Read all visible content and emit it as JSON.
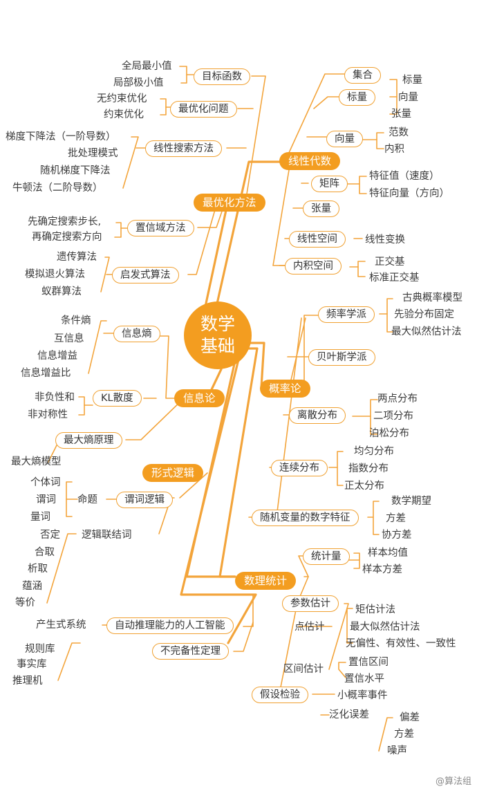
{
  "center": {
    "line1": "数学",
    "line2": "基础"
  },
  "branches": {
    "linear_algebra": {
      "title": "线性代数",
      "set": "集合",
      "scalar": "标量",
      "scalar_items": [
        "标量",
        "向量",
        "张量"
      ],
      "vector": "向量",
      "vector_items": [
        "范数",
        "内积"
      ],
      "matrix": "矩阵",
      "matrix_items": [
        "特征值（速度）",
        "特征向量（方向）"
      ],
      "tensor": "张量",
      "linear_space": "线性空间",
      "linear_space_item": "线性变换",
      "inner_space": "内积空间",
      "inner_space_items": [
        "正交基",
        "标准正交基"
      ]
    },
    "optimization": {
      "title": "最优化方法",
      "objective": "目标函数",
      "objective_items": [
        "全局最小值",
        "局部极小值"
      ],
      "problem": "最优化问题",
      "problem_items": [
        "无约束优化",
        "约束优化"
      ],
      "line_search": "线性搜索方法",
      "line_search_items": [
        "梯度下降法（一阶导数）",
        "批处理模式",
        "随机梯度下降法",
        "牛顿法（二阶导数）"
      ],
      "trust_region": "置信域方法",
      "trust_region_items": [
        "先确定搜索步长,",
        "再确定搜索方向"
      ],
      "heuristic": "启发式算法",
      "heuristic_items": [
        "遗传算法",
        "模拟退火算法",
        "蚁群算法"
      ]
    },
    "information": {
      "title": "信息论",
      "entropy": "信息熵",
      "entropy_items": [
        "条件熵",
        "互信息",
        "信息增益",
        "信息增益比"
      ],
      "kl": "KL散度",
      "kl_items": [
        "非负性和",
        "非对称性"
      ],
      "max_entropy": "最大熵原理",
      "max_entropy_item": "最大熵模型"
    },
    "probability": {
      "title": "概率论",
      "frequentist": "频率学派",
      "frequentist_items": [
        "古典概率模型",
        "先验分布固定",
        "最大似然估计法"
      ],
      "bayesian": "贝叶斯学派",
      "discrete": "离散分布",
      "discrete_items": [
        "两点分布",
        "二项分布",
        "泊松分布"
      ],
      "continuous": "连续分布",
      "continuous_items": [
        "均匀分布",
        "指数分布",
        "正太分布"
      ],
      "features": "随机变量的数字特征",
      "features_items": [
        "数学期望",
        "方差",
        "协方差"
      ]
    },
    "logic": {
      "title": "形式逻辑",
      "predicate": "谓词逻辑",
      "proposition": "命题",
      "proposition_items": [
        "个体词",
        "谓词",
        "量词"
      ],
      "connective": "逻辑联结词",
      "connective_items": [
        "否定",
        "合取",
        "析取",
        "蕴涵",
        "等价"
      ],
      "auto_reasoning": "自动推理能力的人工智能",
      "production": "产生式系统",
      "production_items": [
        "规则库",
        "事实库",
        "推理机"
      ],
      "incompleteness": "不完备性定理"
    },
    "statistics": {
      "title": "数理统计",
      "statistic": "统计量",
      "statistic_items": [
        "样本均值",
        "样本方差"
      ],
      "param_est": "参数估计",
      "point_est": "点估计",
      "point_items": [
        "矩估计法",
        "最大似然估计法",
        "无偏性、有效性、一致性"
      ],
      "interval_est": "区间估计",
      "interval_items": [
        "置信区间",
        "置信水平"
      ],
      "hypothesis": "假设检验",
      "hypothesis_items": [
        "小概率事件",
        "泛化误差"
      ],
      "error_items": [
        "偏差",
        "方差",
        "噪声"
      ]
    }
  },
  "watermark": "@算法组",
  "colors": {
    "accent": "#f39d20",
    "line": "#f0a030"
  }
}
